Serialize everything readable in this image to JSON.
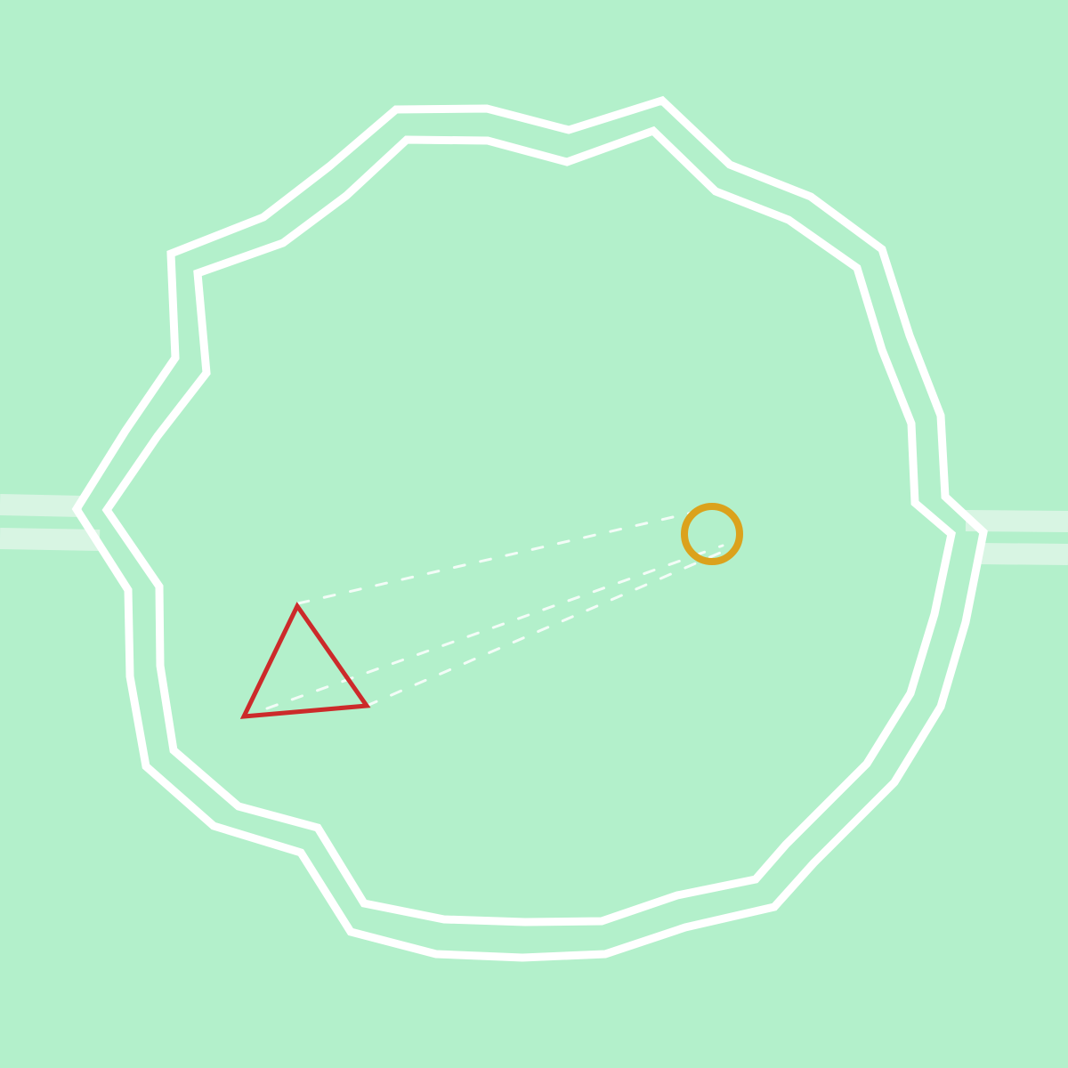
{
  "colors": {
    "background": "#b3f0cb",
    "track_wall": "#ffffff",
    "path_lane": "#d8f5e3",
    "player_triangle": "#cc2a2a",
    "target_ring": "#dba21c",
    "aim_lines": "#ffffff"
  },
  "pieces": {
    "player": {
      "shape": "triangle",
      "icon": "triangle-outline-icon"
    },
    "target": {
      "shape": "ring",
      "icon": "circle-outline-icon"
    }
  },
  "aim_line_count": 3,
  "track": {
    "wall_count": 2,
    "style": "double-wall jagged loop"
  },
  "side_paths": {
    "count": 2,
    "sides": [
      "left",
      "right"
    ]
  }
}
